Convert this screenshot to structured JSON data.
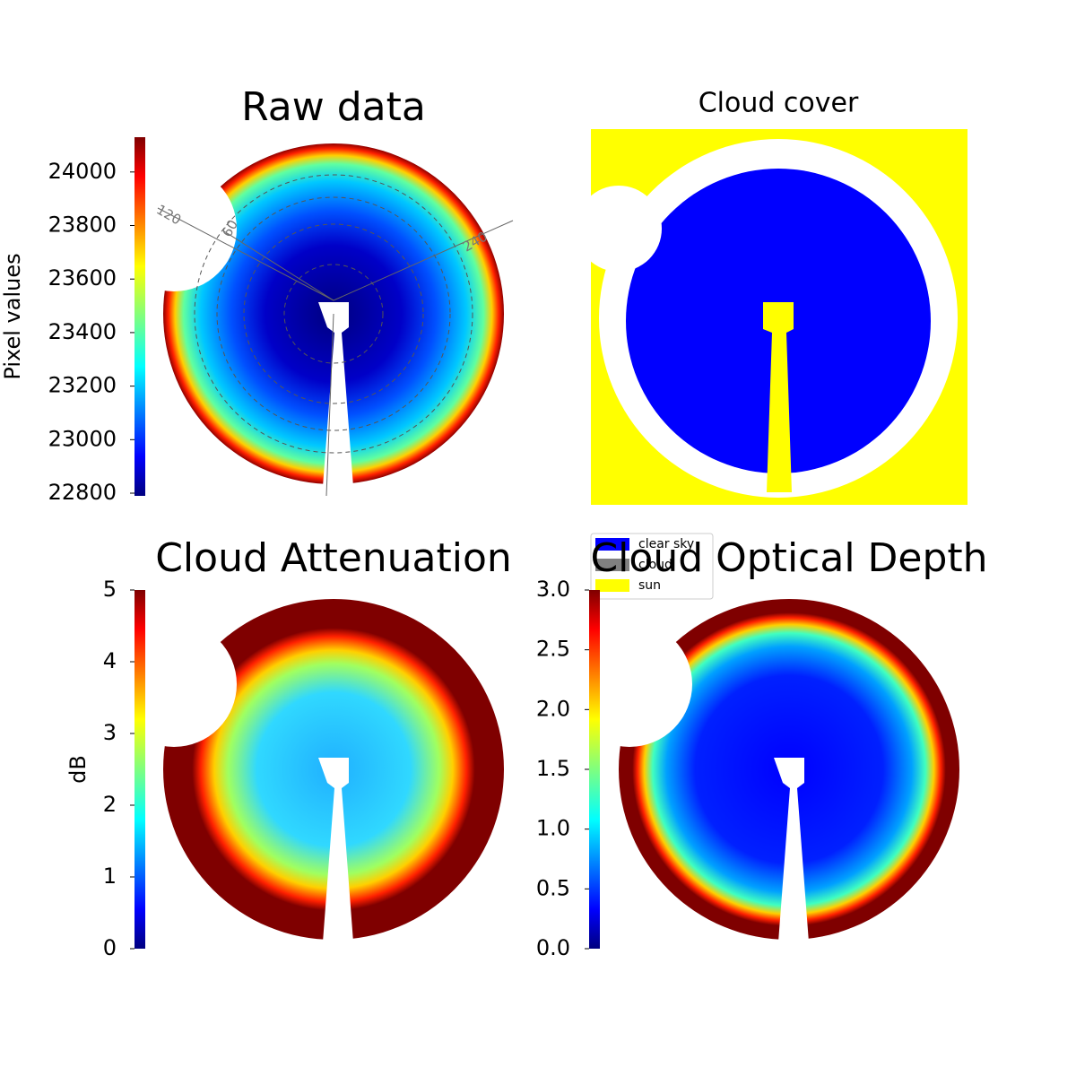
{
  "chart_data": [
    {
      "type": "heatmap",
      "title": "Raw data",
      "polar_labels": [
        "120",
        "60",
        "240"
      ],
      "colorbar": {
        "label": "Pixel values",
        "colormap": "jet",
        "lim": [
          22790,
          24130
        ],
        "ticks": [
          22800,
          23000,
          23200,
          23400,
          23600,
          23800,
          24000
        ]
      }
    },
    {
      "type": "categorical",
      "title": "Cloud cover",
      "legend": [
        {
          "name": "clear sky",
          "color": "#0000ff"
        },
        {
          "name": "cloud",
          "color": "#808080"
        },
        {
          "name": "sun",
          "color": "#ffff00"
        }
      ]
    },
    {
      "type": "heatmap",
      "title": "Cloud Attenuation",
      "colorbar": {
        "label": "dB",
        "colormap": "jet",
        "lim": [
          0,
          5
        ],
        "ticks": [
          0,
          1,
          2,
          3,
          4,
          5
        ]
      }
    },
    {
      "type": "heatmap",
      "title": "Cloud Optical Depth",
      "colorbar": {
        "colormap": "jet",
        "lim": [
          0,
          3
        ],
        "ticks": [
          {
            "value": 0,
            "label": "0.0"
          },
          0.5,
          {
            "value": 1,
            "label": "1.0"
          },
          1.5,
          {
            "value": 2,
            "label": "2.0"
          },
          2.5,
          {
            "value": 3,
            "label": "3.0"
          }
        ]
      }
    }
  ]
}
